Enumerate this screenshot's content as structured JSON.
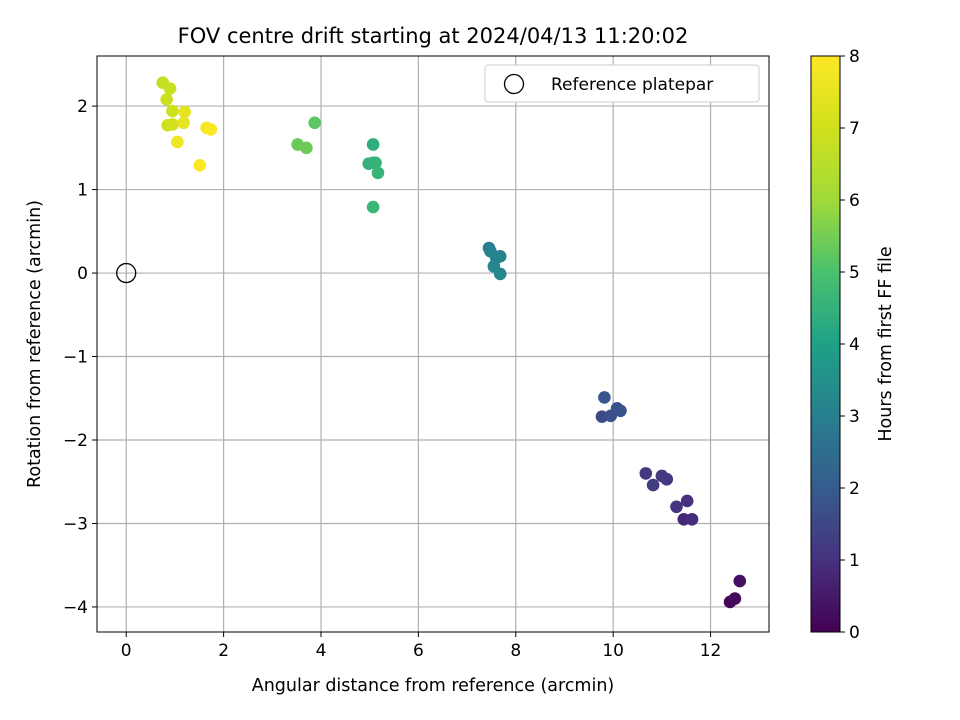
{
  "chart_data": {
    "type": "scatter",
    "title": "FOV centre drift starting at 2024/04/13 11:20:02",
    "xlabel": "Angular distance from reference (arcmin)",
    "ylabel": "Rotation from reference (arcmin)",
    "xlim": [
      -0.6,
      13.2
    ],
    "ylim": [
      -4.3,
      2.6
    ],
    "xticks": [
      0,
      2,
      4,
      6,
      8,
      10,
      12
    ],
    "yticks": [
      -4,
      -3,
      -2,
      -1,
      0,
      1,
      2
    ],
    "xtick_labels": [
      "0",
      "2",
      "4",
      "6",
      "8",
      "10",
      "12"
    ],
    "ytick_labels": [
      "−4",
      "−3",
      "−2",
      "−1",
      "0",
      "1",
      "2"
    ],
    "grid": true,
    "legend": {
      "placement": "top-right",
      "label": "Reference platepar"
    },
    "colorbar": {
      "label": "Hours from first FF file",
      "range": [
        0,
        8
      ],
      "ticks": [
        0,
        1,
        2,
        3,
        4,
        5,
        6,
        7,
        8
      ],
      "tick_labels": [
        "0",
        "1",
        "2",
        "3",
        "4",
        "5",
        "6",
        "7",
        "8"
      ],
      "colormap": "viridis"
    },
    "reference_point": {
      "x": 0,
      "y": 0
    },
    "points": [
      {
        "x": 12.4,
        "y": -3.94,
        "c": 0.1
      },
      {
        "x": 12.5,
        "y": -3.9,
        "c": 0.2
      },
      {
        "x": 12.6,
        "y": -3.69,
        "c": 0.3
      },
      {
        "x": 11.45,
        "y": -2.95,
        "c": 0.8
      },
      {
        "x": 11.62,
        "y": -2.95,
        "c": 0.9
      },
      {
        "x": 11.52,
        "y": -2.73,
        "c": 1.0
      },
      {
        "x": 11.3,
        "y": -2.8,
        "c": 1.05
      },
      {
        "x": 11.1,
        "y": -2.47,
        "c": 1.1
      },
      {
        "x": 11.0,
        "y": -2.43,
        "c": 1.15
      },
      {
        "x": 10.67,
        "y": -2.4,
        "c": 1.2
      },
      {
        "x": 10.82,
        "y": -2.54,
        "c": 1.25
      },
      {
        "x": 9.77,
        "y": -1.72,
        "c": 1.6
      },
      {
        "x": 9.95,
        "y": -1.71,
        "c": 1.7
      },
      {
        "x": 10.08,
        "y": -1.62,
        "c": 1.75
      },
      {
        "x": 10.15,
        "y": -1.65,
        "c": 1.8
      },
      {
        "x": 9.82,
        "y": -1.49,
        "c": 1.85
      },
      {
        "x": 7.45,
        "y": 0.3,
        "c": 3.0
      },
      {
        "x": 7.48,
        "y": 0.26,
        "c": 3.05
      },
      {
        "x": 7.6,
        "y": 0.18,
        "c": 3.1
      },
      {
        "x": 7.68,
        "y": 0.2,
        "c": 3.15
      },
      {
        "x": 7.55,
        "y": 0.08,
        "c": 3.2
      },
      {
        "x": 7.68,
        "y": -0.01,
        "c": 3.25
      },
      {
        "x": 5.07,
        "y": 1.54,
        "c": 4.4
      },
      {
        "x": 4.98,
        "y": 1.31,
        "c": 4.45
      },
      {
        "x": 5.07,
        "y": 1.32,
        "c": 4.5
      },
      {
        "x": 5.12,
        "y": 1.32,
        "c": 4.55
      },
      {
        "x": 5.17,
        "y": 1.2,
        "c": 4.6
      },
      {
        "x": 5.07,
        "y": 0.79,
        "c": 4.65
      },
      {
        "x": 3.87,
        "y": 1.8,
        "c": 5.2
      },
      {
        "x": 3.52,
        "y": 1.54,
        "c": 5.35
      },
      {
        "x": 3.7,
        "y": 1.5,
        "c": 5.4
      },
      {
        "x": 0.75,
        "y": 2.28,
        "c": 6.7
      },
      {
        "x": 0.9,
        "y": 2.21,
        "c": 6.8
      },
      {
        "x": 0.83,
        "y": 2.08,
        "c": 6.9
      },
      {
        "x": 0.95,
        "y": 1.94,
        "c": 6.95
      },
      {
        "x": 0.85,
        "y": 1.77,
        "c": 7.0
      },
      {
        "x": 0.95,
        "y": 1.78,
        "c": 7.05
      },
      {
        "x": 1.2,
        "y": 1.93,
        "c": 7.45
      },
      {
        "x": 1.18,
        "y": 1.8,
        "c": 7.5
      },
      {
        "x": 1.05,
        "y": 1.57,
        "c": 7.7
      },
      {
        "x": 1.65,
        "y": 1.74,
        "c": 7.85
      },
      {
        "x": 1.74,
        "y": 1.72,
        "c": 7.95
      },
      {
        "x": 1.51,
        "y": 1.29,
        "c": 8.0
      }
    ]
  }
}
